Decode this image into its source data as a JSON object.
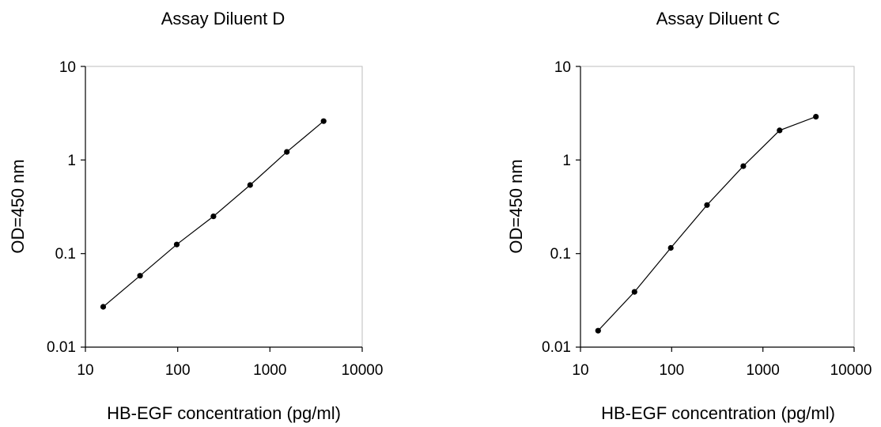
{
  "chart_data": [
    {
      "type": "line",
      "title": "Assay Diluent D",
      "xlabel": "HB-EGF concentration (pg/ml)",
      "ylabel": "OD=450 nm",
      "xscale": "log",
      "yscale": "log",
      "xlim": [
        10,
        10000
      ],
      "ylim": [
        0.01,
        10
      ],
      "xticks": [
        "10",
        "100",
        "1000",
        "10000"
      ],
      "yticks": [
        "0.01",
        "0.1",
        "1",
        "10"
      ],
      "grid": false,
      "series": [
        {
          "color": "#000000",
          "x": [
            15.6,
            39.1,
            97.7,
            244,
            610,
            1526,
            3815
          ],
          "y": [
            0.027,
            0.058,
            0.125,
            0.25,
            0.54,
            1.22,
            2.6
          ]
        }
      ]
    },
    {
      "type": "line",
      "title": "Assay Diluent C",
      "xlabel": "HB-EGF concentration (pg/ml)",
      "ylabel": "OD=450 nm",
      "xscale": "log",
      "yscale": "log",
      "xlim": [
        10,
        10000
      ],
      "ylim": [
        0.01,
        10
      ],
      "xticks": [
        "10",
        "100",
        "1000",
        "10000"
      ],
      "yticks": [
        "0.01",
        "0.1",
        "1",
        "10"
      ],
      "grid": false,
      "series": [
        {
          "color": "#000000",
          "x": [
            15.6,
            39.1,
            97.7,
            244,
            610,
            1526,
            3815
          ],
          "y": [
            0.015,
            0.039,
            0.115,
            0.33,
            0.86,
            2.07,
            2.9
          ]
        }
      ]
    }
  ]
}
